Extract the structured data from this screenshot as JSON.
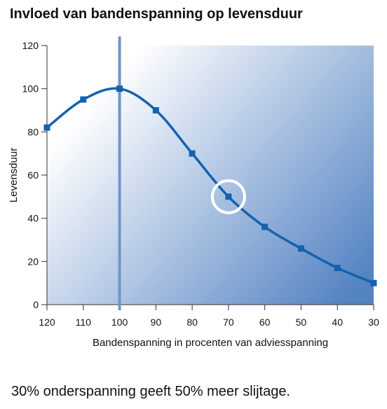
{
  "chart_data": {
    "type": "line",
    "title": "Invloed van bandenspanning op levensduur",
    "x_label": "Bandenspanning in procenten van adviesspanning",
    "y_label": "Levensduur",
    "caption": "30% onderspanning geeft 50% meer slijtage.",
    "x": [
      120,
      110,
      100,
      90,
      80,
      70,
      60,
      50,
      40,
      30
    ],
    "series": [
      {
        "name": "Levensduur",
        "color": "#1462ae",
        "values": [
          82,
          95,
          100,
          90,
          70,
          50,
          36,
          26,
          17,
          10
        ]
      }
    ],
    "xlim": [
      120,
      30
    ],
    "xticks": [
      120,
      110,
      100,
      90,
      80,
      70,
      60,
      50,
      40,
      30
    ],
    "ylim": [
      0,
      120
    ],
    "yticks": [
      0,
      20,
      40,
      60,
      80,
      100,
      120
    ],
    "vline": 100,
    "highlight_x": 70
  }
}
